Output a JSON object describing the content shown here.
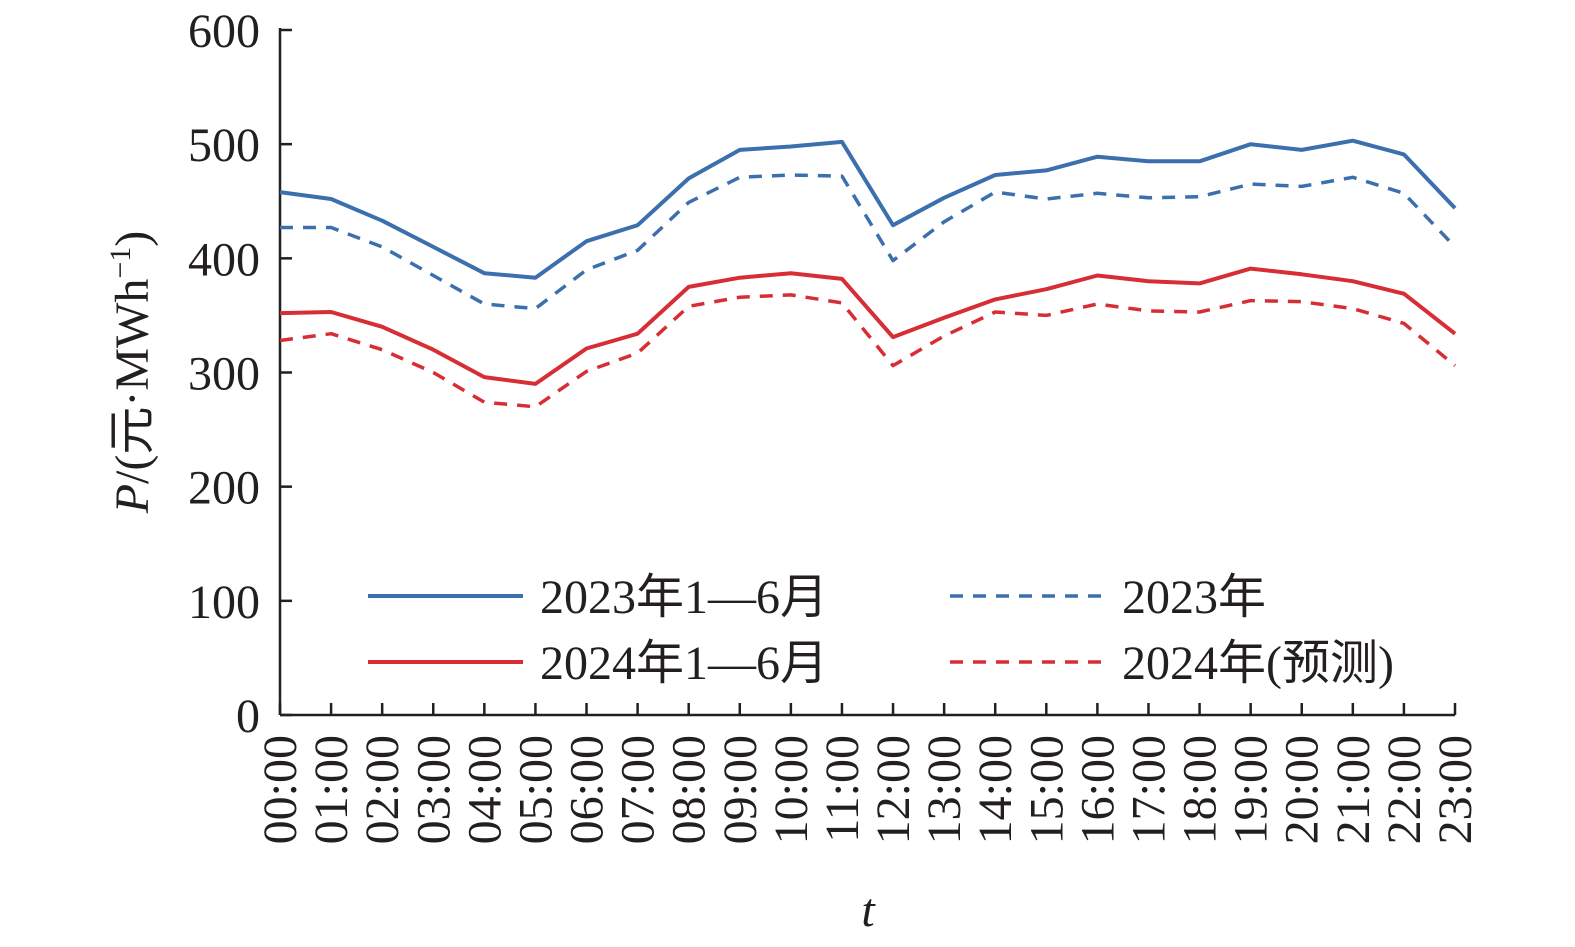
{
  "chart_data": {
    "type": "line",
    "xlabel": "t",
    "ylabel": "P/(元·MWh⁻¹)",
    "ylim": [
      0,
      600
    ],
    "yticks": [
      0,
      100,
      200,
      300,
      400,
      500,
      600
    ],
    "categories": [
      "00:00",
      "01:00",
      "02:00",
      "03:00",
      "04:00",
      "05:00",
      "06:00",
      "07:00",
      "08:00",
      "09:00",
      "10:00",
      "11:00",
      "12:00",
      "13:00",
      "14:00",
      "15:00",
      "16:00",
      "17:00",
      "18:00",
      "19:00",
      "20:00",
      "21:00",
      "22:00",
      "23:00"
    ],
    "legend_position": "bottom-center",
    "grid": false,
    "series": [
      {
        "name": "2023年1—6月",
        "color": "#3c6fad",
        "dash": "solid",
        "values": [
          458,
          452,
          433,
          410,
          387,
          383,
          415,
          429,
          470,
          495,
          498,
          502,
          429,
          453,
          473,
          477,
          489,
          485,
          485,
          500,
          495,
          503,
          491,
          444
        ]
      },
      {
        "name": "2023年",
        "color": "#3c6fad",
        "dash": "dashed",
        "values": [
          427,
          427,
          410,
          385,
          360,
          356,
          390,
          407,
          449,
          471,
          473,
          472,
          398,
          432,
          458,
          452,
          457,
          453,
          454,
          465,
          463,
          471,
          457,
          410
        ]
      },
      {
        "name": "2024年1—6月",
        "color": "#d62e34",
        "dash": "solid",
        "values": [
          352,
          353,
          340,
          320,
          296,
          290,
          321,
          334,
          375,
          383,
          387,
          382,
          331,
          348,
          364,
          373,
          385,
          380,
          378,
          391,
          386,
          380,
          369,
          334
        ]
      },
      {
        "name": "2024年(预测)",
        "color": "#d62e34",
        "dash": "dashed",
        "values": [
          328,
          334,
          320,
          300,
          274,
          270,
          301,
          317,
          358,
          366,
          368,
          361,
          306,
          332,
          353,
          350,
          360,
          354,
          353,
          363,
          362,
          356,
          343,
          306
        ]
      }
    ]
  }
}
